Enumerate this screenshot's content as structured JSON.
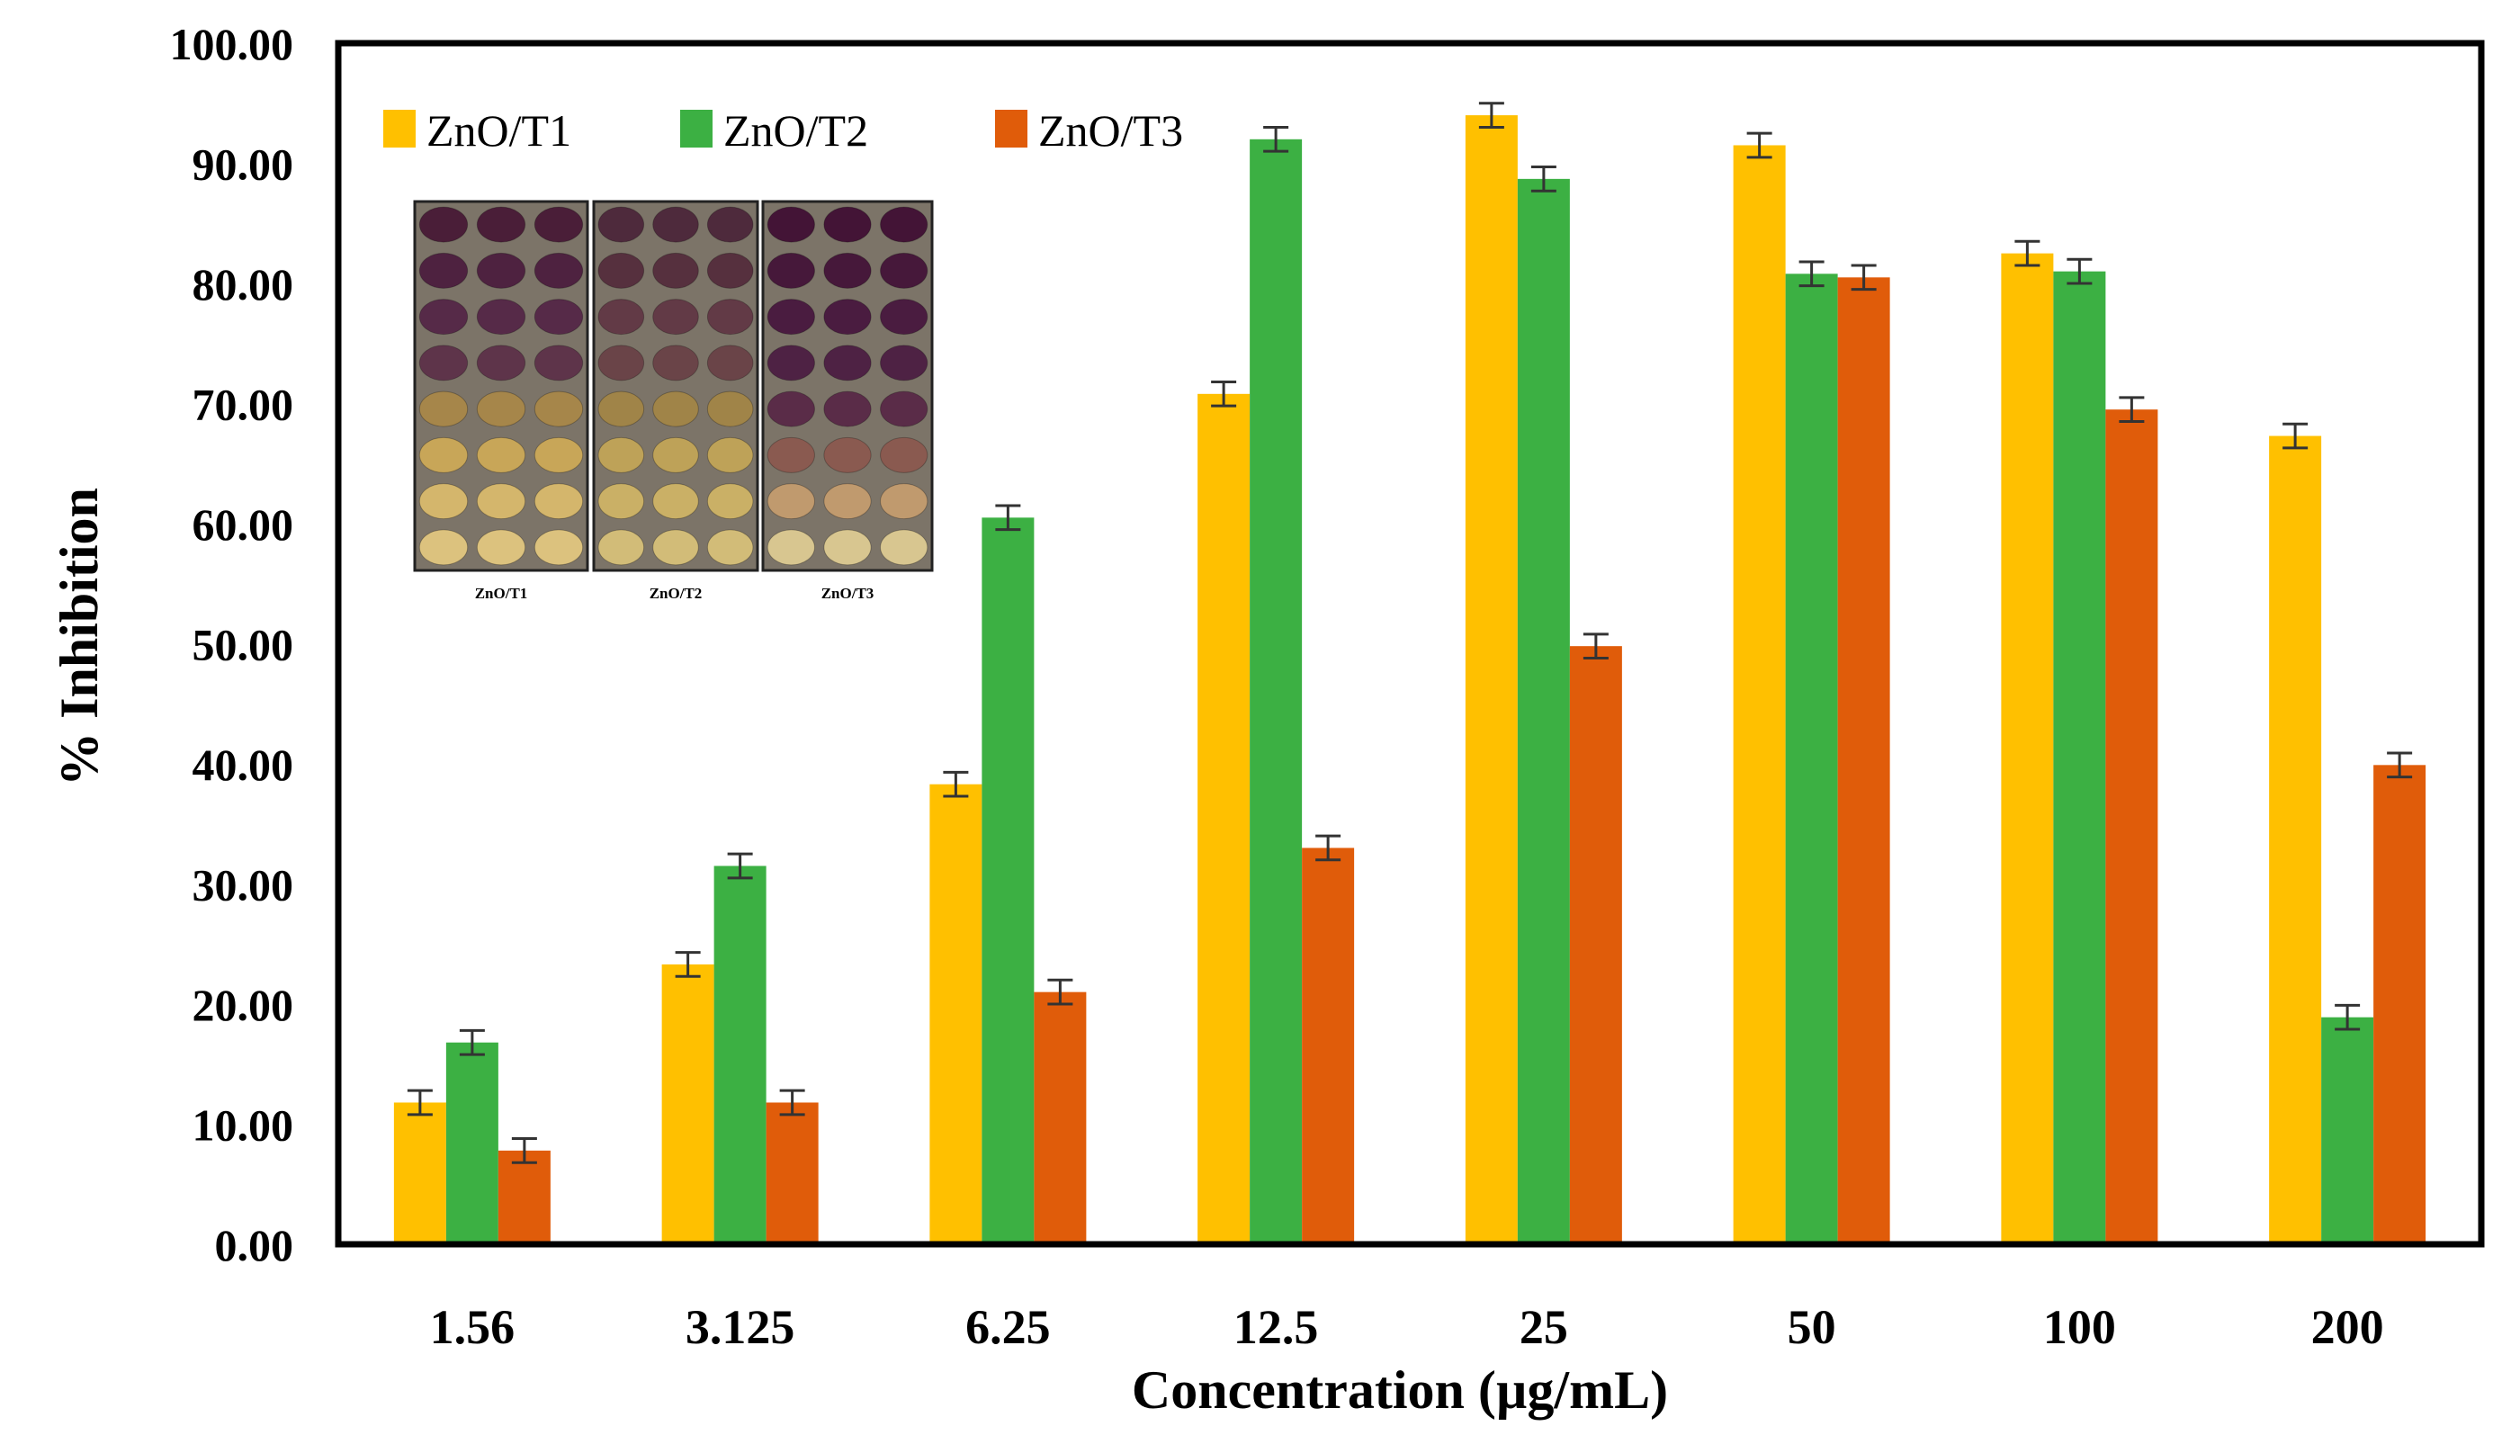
{
  "chart_data": {
    "type": "bar",
    "title": "",
    "xlabel": "Concentration (µg/mL)",
    "ylabel": "% Inhibition",
    "ylim": [
      0,
      100
    ],
    "ytick_step": 10,
    "ytick_labels": [
      "0.00",
      "10.00",
      "20.00",
      "30.00",
      "40.00",
      "50.00",
      "60.00",
      "70.00",
      "80.00",
      "90.00",
      "100.00"
    ],
    "categories": [
      "1.56",
      "3.125",
      "6.25",
      "12.5",
      "25",
      "50",
      "100",
      "200"
    ],
    "series": [
      {
        "name": "ZnO/T1",
        "color": "#FFC000",
        "values": [
          11.8,
          23.3,
          38.3,
          70.8,
          94.0,
          91.5,
          82.5,
          67.3
        ],
        "errors": [
          1.0,
          1.0,
          1.0,
          1.0,
          1.0,
          1.0,
          1.0,
          1.0
        ]
      },
      {
        "name": "ZnO/T2",
        "color": "#3CB043",
        "values": [
          16.8,
          31.5,
          60.5,
          92.0,
          88.7,
          80.8,
          81.0,
          18.9
        ],
        "errors": [
          1.0,
          1.0,
          1.0,
          1.0,
          1.0,
          1.0,
          1.0,
          1.0
        ]
      },
      {
        "name": "ZnO/T3",
        "color": "#E05C0A",
        "values": [
          7.8,
          11.8,
          21.0,
          33.0,
          49.8,
          80.5,
          69.5,
          39.9
        ],
        "errors": [
          1.0,
          1.0,
          1.0,
          1.0,
          1.0,
          1.0,
          1.0,
          1.0
        ]
      }
    ],
    "legend_position": "top-left",
    "inset": {
      "panels": [
        {
          "label": "ZnO/T1",
          "row_colors": [
            "#4a1e38",
            "#4e2240",
            "#562a48",
            "#5e344a",
            "#a6864a",
            "#c8a658",
            "#d4b66c",
            "#dcc27e"
          ]
        },
        {
          "label": "ZnO/T2",
          "row_colors": [
            "#4e2a3c",
            "#56303e",
            "#623a46",
            "#6a4448",
            "#a08448",
            "#bea258",
            "#cab066",
            "#d2bc78"
          ]
        },
        {
          "label": "ZnO/T3",
          "row_colors": [
            "#431436",
            "#46183a",
            "#4a1c40",
            "#4e2244",
            "#5a2c48",
            "#8a5a50",
            "#c09a6e",
            "#d8c690"
          ]
        }
      ]
    }
  }
}
